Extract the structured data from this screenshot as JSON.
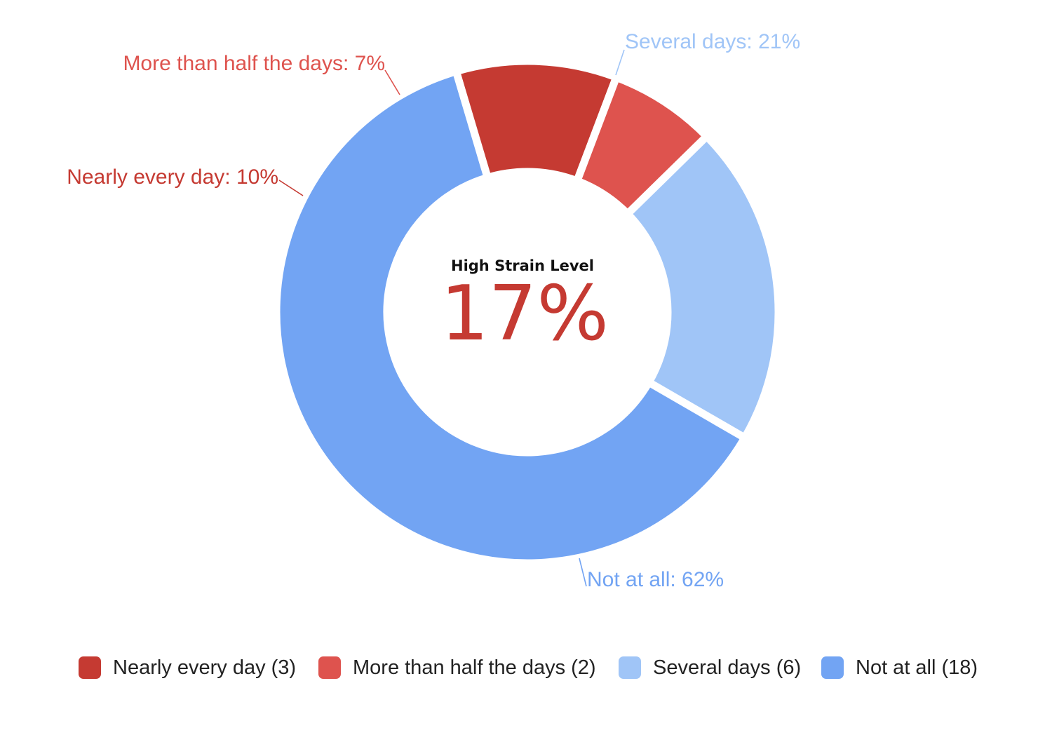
{
  "chart_data": {
    "type": "pie",
    "variant": "donut",
    "center": {
      "title": "High Strain Level",
      "value": "17%",
      "value_color": "#c53a32"
    },
    "slices": [
      {
        "key": "nearly-every-day",
        "name": "Nearly every day",
        "count": 3,
        "percent": 10,
        "label": "Nearly every day: 10%",
        "legend": "Nearly every day (3)",
        "color": "#c53a32"
      },
      {
        "key": "more-than-half",
        "name": "More than half the days",
        "count": 2,
        "percent": 7,
        "label": "More than half the days: 7%",
        "legend": "More than half the days (2)",
        "color": "#de534e"
      },
      {
        "key": "several-days",
        "name": "Several days",
        "count": 6,
        "percent": 21,
        "label": "Several days: 21%",
        "legend": "Several days (6)",
        "color": "#a0c5f7"
      },
      {
        "key": "not-at-all",
        "name": "Not at all",
        "count": 18,
        "percent": 62,
        "label": "Not at all: 62%",
        "legend": "Not at all (18)",
        "color": "#72a4f3"
      }
    ],
    "legend_position": "bottom"
  }
}
